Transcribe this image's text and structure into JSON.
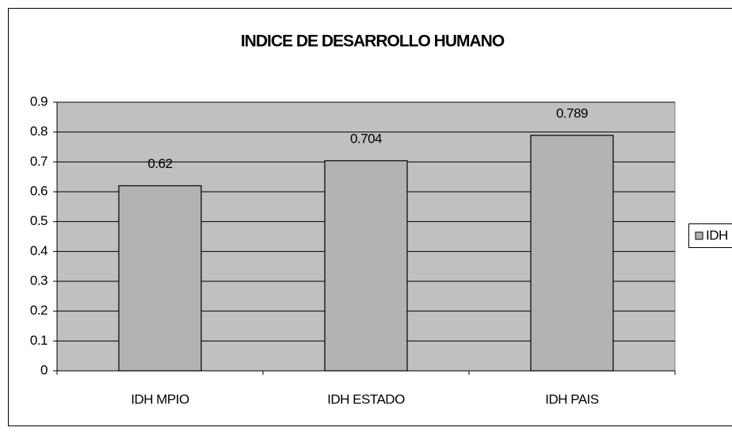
{
  "chart_data": {
    "type": "bar",
    "title": "INDICE DE DESARROLLO HUMANO",
    "categories": [
      "IDH MPIO",
      "IDH ESTADO",
      "IDH PAIS"
    ],
    "series": [
      {
        "name": "IDH",
        "color": "#b3b3b3",
        "values": [
          0.62,
          0.704,
          0.789
        ]
      }
    ],
    "ylim": [
      0,
      0.9
    ],
    "yticks": [
      0,
      0.1,
      0.2,
      0.3,
      0.4,
      0.5,
      0.6,
      0.7,
      0.8,
      0.9
    ],
    "grid": true,
    "legend": "right",
    "plot_background": "#c0c0c0"
  }
}
